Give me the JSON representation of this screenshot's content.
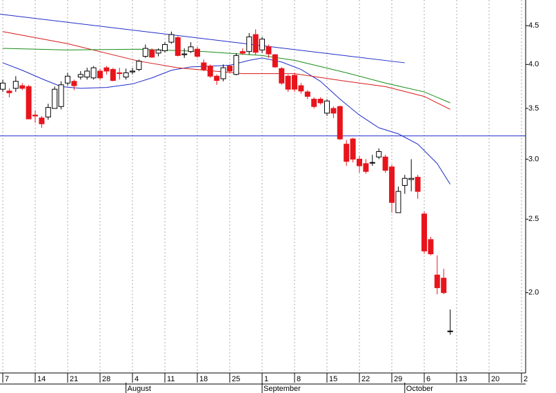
{
  "chart_data": {
    "type": "candlestick",
    "x": [
      0,
      1,
      2,
      3,
      4,
      5,
      6,
      7,
      8,
      9,
      10,
      11,
      12,
      13,
      14,
      15,
      16,
      17,
      18,
      19,
      20,
      21,
      22,
      23,
      24,
      25,
      26,
      27,
      28,
      29,
      30,
      31,
      32,
      33,
      34,
      35,
      36,
      37,
      38,
      39,
      40,
      41,
      42,
      43,
      44,
      45,
      46,
      47,
      48,
      49,
      50,
      51,
      52,
      53,
      54,
      55,
      56,
      57,
      58,
      59,
      60,
      61,
      62,
      63,
      64,
      65,
      66,
      67,
      68,
      69
    ],
    "open": [
      3.71,
      3.69,
      3.72,
      3.75,
      3.74,
      3.43,
      3.4,
      3.41,
      3.5,
      3.52,
      3.78,
      3.8,
      3.85,
      3.85,
      3.84,
      3.92,
      3.96,
      3.94,
      3.9,
      3.85,
      3.91,
      3.94,
      4.1,
      4.18,
      4.14,
      4.17,
      4.28,
      4.34,
      4.12,
      4.16,
      4.19,
      4.02,
      3.98,
      3.86,
      3.83,
      3.98,
      3.88,
      4.16,
      4.16,
      4.38,
      4.18,
      4.22,
      4.12,
      3.95,
      3.86,
      3.87,
      3.75,
      3.68,
      3.6,
      3.6,
      3.45,
      3.5,
      3.52,
      3.14,
      3.19,
      3.0,
      2.96,
      2.97,
      3.02,
      3.02,
      2.93,
      2.55,
      2.77,
      2.82,
      2.84,
      2.54,
      2.35,
      2.11,
      2.09,
      1.78
    ],
    "high": [
      3.82,
      3.72,
      3.86,
      3.78,
      3.76,
      3.48,
      3.42,
      3.55,
      3.74,
      3.8,
      3.9,
      3.82,
      3.92,
      3.96,
      3.98,
      3.95,
      3.98,
      3.96,
      3.96,
      3.95,
      3.96,
      4.06,
      4.25,
      4.2,
      4.2,
      4.28,
      4.42,
      4.36,
      4.2,
      4.28,
      4.22,
      4.06,
      4.0,
      3.88,
      4.0,
      4.0,
      4.14,
      4.2,
      4.4,
      4.45,
      4.35,
      4.25,
      4.13,
      3.97,
      3.88,
      3.9,
      3.78,
      3.7,
      3.62,
      3.62,
      3.6,
      3.52,
      3.53,
      3.18,
      3.2,
      3.03,
      3.0,
      3.04,
      3.1,
      3.04,
      2.95,
      2.76,
      2.86,
      3.0,
      2.86,
      2.56,
      2.37,
      2.24,
      2.15,
      1.9
    ],
    "low": [
      3.68,
      3.62,
      3.68,
      3.7,
      3.39,
      3.35,
      3.3,
      3.38,
      3.5,
      3.49,
      3.75,
      3.7,
      3.82,
      3.82,
      3.82,
      3.82,
      3.88,
      3.8,
      3.82,
      3.82,
      3.88,
      3.92,
      4.08,
      4.08,
      4.1,
      4.15,
      4.26,
      4.1,
      4.08,
      4.14,
      4.08,
      3.92,
      3.84,
      3.76,
      3.8,
      3.9,
      3.87,
      4.12,
      4.12,
      4.12,
      4.14,
      4.08,
      3.96,
      3.76,
      3.68,
      3.68,
      3.66,
      3.6,
      3.5,
      3.54,
      3.42,
      3.4,
      3.18,
      2.94,
      2.97,
      2.88,
      2.87,
      2.94,
      3.0,
      2.88,
      2.55,
      2.55,
      2.7,
      2.72,
      2.66,
      2.25,
      2.24,
      1.99,
      1.99,
      1.76
    ],
    "close": [
      3.78,
      3.67,
      3.8,
      3.72,
      3.39,
      3.42,
      3.34,
      3.51,
      3.71,
      3.76,
      3.86,
      3.75,
      3.88,
      3.92,
      3.96,
      3.84,
      3.92,
      3.81,
      3.89,
      3.9,
      3.92,
      4.04,
      4.2,
      4.09,
      4.18,
      4.25,
      4.38,
      4.11,
      4.13,
      4.22,
      4.1,
      3.94,
      3.86,
      3.81,
      3.96,
      3.92,
      4.11,
      4.14,
      4.35,
      4.15,
      4.32,
      4.13,
      3.97,
      3.78,
      3.71,
      3.71,
      3.69,
      3.63,
      3.52,
      3.56,
      3.58,
      3.45,
      3.19,
      2.98,
      3.0,
      2.94,
      2.89,
      2.97,
      3.07,
      2.9,
      2.63,
      2.72,
      2.83,
      2.83,
      2.72,
      2.27,
      2.25,
      2.03,
      2.0,
      1.78
    ],
    "up_color": "#ffffff",
    "down_color": "#e8141c",
    "lines": [
      {
        "color": "#1e2cc8",
        "x": [
          0,
          3,
          6,
          9,
          12,
          16,
          20,
          23,
          26,
          29,
          32,
          35,
          38,
          40,
          43,
          46,
          49,
          52,
          55,
          58,
          61,
          64,
          67,
          69
        ],
        "values": [
          4.02,
          3.93,
          3.83,
          3.74,
          3.72,
          3.73,
          3.77,
          3.84,
          3.93,
          3.97,
          3.98,
          3.99,
          4.05,
          4.08,
          4.03,
          3.94,
          3.8,
          3.6,
          3.43,
          3.3,
          3.24,
          3.14,
          2.96,
          2.78
        ]
      },
      {
        "color": "#d81818",
        "x": [
          0,
          10,
          21,
          27,
          37,
          45,
          53,
          59,
          65,
          69
        ],
        "values": [
          4.42,
          4.26,
          4.04,
          3.96,
          3.89,
          3.89,
          3.8,
          3.74,
          3.63,
          3.49
        ]
      },
      {
        "color": "#178c17",
        "x": [
          0,
          10,
          21,
          31,
          40,
          45,
          53,
          59,
          65,
          69
        ],
        "values": [
          4.2,
          4.18,
          4.19,
          4.16,
          4.11,
          4.05,
          3.9,
          3.78,
          3.68,
          3.56
        ]
      },
      {
        "color": "#1e2cc8",
        "x": [
          -0.43,
          62
        ],
        "values": [
          4.66,
          4.02
        ]
      }
    ],
    "hlines": [
      {
        "value": 3.22,
        "color": "#1e2cc8"
      }
    ],
    "xlim": [
      -0.43,
      80.64
    ],
    "ylim": [
      1.567,
      4.865
    ],
    "log_y": true,
    "yticks": [
      {
        "value": 2,
        "label": "2.0"
      },
      {
        "value": 2.5,
        "label": "2.5"
      },
      {
        "value": 3,
        "label": "3.0"
      },
      {
        "value": 3.5,
        "label": "3.5"
      },
      {
        "value": 4,
        "label": "4.0"
      },
      {
        "value": 4.5,
        "label": "4.5"
      }
    ],
    "xticks": [
      {
        "value": 0,
        "label": "7"
      },
      {
        "value": 5,
        "label": "14"
      },
      {
        "value": 10,
        "label": "21"
      },
      {
        "value": 15,
        "label": "28"
      },
      {
        "value": 20,
        "label": "4"
      },
      {
        "value": 25,
        "label": "11"
      },
      {
        "value": 30,
        "label": "18"
      },
      {
        "value": 35,
        "label": "25"
      },
      {
        "value": 40,
        "label": "1"
      },
      {
        "value": 45,
        "label": "8"
      },
      {
        "value": 50,
        "label": "15"
      },
      {
        "value": 55,
        "label": "22"
      },
      {
        "value": 60,
        "label": "29"
      },
      {
        "value": 65,
        "label": "6"
      },
      {
        "value": 70,
        "label": "13"
      },
      {
        "value": 75,
        "label": "20"
      },
      {
        "value": 80,
        "label": "2"
      }
    ],
    "month_ticks": [
      {
        "value": 19,
        "label": "August"
      },
      {
        "value": 40,
        "label": "September"
      },
      {
        "value": 62,
        "label": "October"
      }
    ],
    "grid": true
  }
}
